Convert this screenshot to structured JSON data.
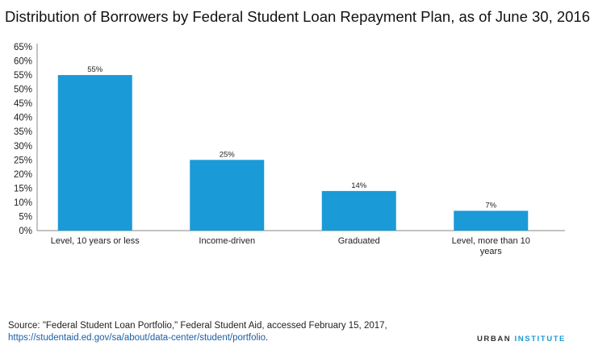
{
  "chart_data": {
    "type": "bar",
    "title": "Distribution of Borrowers by Federal Student Loan Repayment Plan, as of June 30, 2016",
    "categories": [
      "Level, 10 years or less",
      "Income-driven",
      "Graduated",
      "Level, more than 10 years"
    ],
    "values": [
      55,
      25,
      14,
      7
    ],
    "data_labels": [
      "55%",
      "25%",
      "14%",
      "7%"
    ],
    "y_ticks": [
      "0%",
      "5%",
      "10%",
      "15%",
      "20%",
      "25%",
      "30%",
      "35%",
      "40%",
      "45%",
      "50%",
      "55%",
      "60%",
      "65%"
    ],
    "ylim": [
      0,
      65
    ],
    "xlabel": "",
    "ylabel": "",
    "grid": false,
    "bar_color": "#1a9ad6"
  },
  "footer": {
    "source_text": "Source: \"Federal Student Loan Portfolio,\" Federal Student Aid, accessed February 15, 2017,",
    "source_link": "https://studentaid.ed.gov/sa/about/data-center/student/portfolio",
    "source_end": ".",
    "brand_part1": "URBAN ",
    "brand_part2": "INSTITUTE"
  }
}
